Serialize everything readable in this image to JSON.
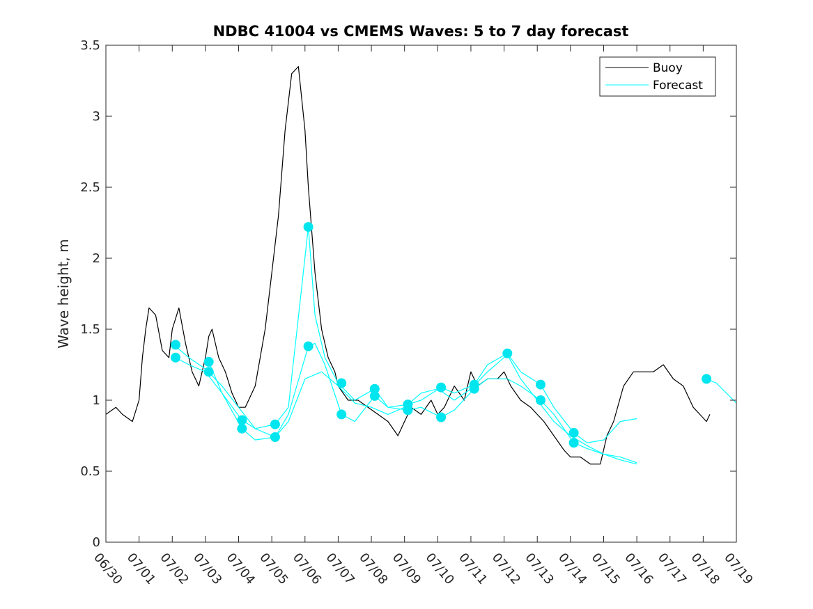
{
  "chart_data": {
    "type": "line",
    "title": "NDBC 41004 vs CMEMS Waves: 5 to 7 day forecast",
    "ylabel": "Wave height, m",
    "xlabel": "",
    "xlim": [
      0,
      19
    ],
    "ylim": [
      0,
      3.5
    ],
    "x_ticks": [
      0,
      1,
      2,
      3,
      4,
      5,
      6,
      7,
      8,
      9,
      10,
      11,
      12,
      13,
      14,
      15,
      16,
      17,
      18,
      19
    ],
    "x_tick_labels": [
      "06/30",
      "07/01",
      "07/02",
      "07/03",
      "07/04",
      "07/05",
      "07/06",
      "07/07",
      "07/08",
      "07/09",
      "07/10",
      "07/11",
      "07/12",
      "07/13",
      "07/14",
      "07/15",
      "07/16",
      "07/17",
      "07/18",
      "07/19"
    ],
    "y_ticks": [
      0,
      0.5,
      1,
      1.5,
      2,
      2.5,
      3,
      3.5
    ],
    "y_tick_labels": [
      "0",
      "0.5",
      "1",
      "1.5",
      "2",
      "2.5",
      "3",
      "3.5"
    ],
    "x_unit": "days after 06/30",
    "legend": {
      "position": "top-right",
      "entries": [
        {
          "name": "Buoy",
          "color": "#000000"
        },
        {
          "name": "Forecast",
          "color": "#00ffff"
        }
      ]
    },
    "colors": {
      "buoy": "#000000",
      "forecast": "#00ffff",
      "marker": "#00e5ee"
    },
    "series": [
      {
        "name": "Buoy",
        "color": "#000000",
        "x": [
          0,
          0.3,
          0.5,
          0.8,
          1.0,
          1.1,
          1.2,
          1.3,
          1.5,
          1.7,
          1.9,
          2.0,
          2.2,
          2.4,
          2.6,
          2.8,
          3.0,
          3.1,
          3.2,
          3.4,
          3.6,
          3.8,
          4.0,
          4.2,
          4.5,
          4.8,
          5.0,
          5.2,
          5.4,
          5.6,
          5.8,
          6.0,
          6.1,
          6.3,
          6.5,
          6.7,
          6.9,
          7.0,
          7.3,
          7.6,
          7.9,
          8.2,
          8.5,
          8.8,
          9.0,
          9.2,
          9.5,
          9.8,
          10.0,
          10.2,
          10.5,
          10.8,
          11.0,
          11.2,
          11.5,
          11.8,
          12.0,
          12.2,
          12.5,
          12.8,
          13.0,
          13.2,
          13.5,
          13.8,
          14.0,
          14.3,
          14.6,
          14.9,
          15.1,
          15.3,
          15.6,
          15.9,
          16.2,
          16.5,
          16.8,
          17.1,
          17.4,
          17.7,
          17.9,
          18.1,
          18.2
        ],
        "y": [
          0.9,
          0.95,
          0.9,
          0.85,
          1.0,
          1.3,
          1.5,
          1.65,
          1.6,
          1.35,
          1.3,
          1.5,
          1.65,
          1.4,
          1.2,
          1.1,
          1.3,
          1.45,
          1.5,
          1.3,
          1.2,
          1.05,
          0.95,
          0.95,
          1.1,
          1.5,
          1.9,
          2.3,
          2.9,
          3.3,
          3.35,
          2.9,
          2.5,
          1.9,
          1.5,
          1.3,
          1.2,
          1.1,
          1.0,
          1.0,
          0.95,
          0.9,
          0.85,
          0.75,
          0.85,
          0.95,
          0.9,
          1.0,
          0.9,
          0.95,
          1.1,
          1.0,
          1.2,
          1.1,
          1.15,
          1.15,
          1.2,
          1.1,
          1.0,
          0.95,
          0.9,
          0.85,
          0.75,
          0.65,
          0.6,
          0.6,
          0.55,
          0.55,
          0.75,
          0.85,
          1.1,
          1.2,
          1.2,
          1.2,
          1.25,
          1.15,
          1.1,
          0.95,
          0.9,
          0.85,
          0.9
        ]
      },
      {
        "name": "Forecast",
        "color": "#00ffff",
        "x": [
          2.1,
          2.5,
          3.0,
          3.5,
          4.0,
          4.5,
          5.1,
          5.5,
          6.0,
          6.5,
          7.0,
          7.5,
          8.0,
          8.5,
          9.0,
          9.5,
          10.0,
          10.5,
          11.0,
          11.5,
          12.1,
          12.5,
          13.0,
          13.5,
          14.0,
          14.5,
          15.0,
          15.5,
          16.0
        ],
        "y": [
          1.38,
          1.3,
          1.22,
          1.1,
          0.95,
          0.8,
          0.74,
          0.85,
          1.15,
          1.2,
          1.1,
          0.98,
          0.95,
          0.9,
          0.95,
          1.05,
          1.08,
          1.0,
          1.08,
          1.2,
          1.32,
          1.15,
          1.0,
          0.85,
          0.75,
          0.68,
          0.62,
          0.6,
          0.56
        ]
      },
      {
        "name": "Forecast",
        "color": "#00ffff",
        "x": [
          2.1,
          2.5,
          3.0,
          3.5,
          4.1,
          4.5,
          5.1,
          5.5,
          6.1,
          6.3,
          6.6,
          7.0,
          7.5,
          8.1,
          8.5,
          9.1,
          9.5,
          10.1,
          10.5,
          11.1,
          11.5,
          12.1,
          12.5,
          13.1,
          13.5,
          14.1,
          14.5,
          15.0,
          15.5,
          16.0
        ],
        "y": [
          1.3,
          1.25,
          1.2,
          1.05,
          0.86,
          0.8,
          0.83,
          0.95,
          2.22,
          1.6,
          1.3,
          1.12,
          1.0,
          1.08,
          0.95,
          0.97,
          1.0,
          1.09,
          1.05,
          1.11,
          1.25,
          1.33,
          1.2,
          1.11,
          0.95,
          0.77,
          0.7,
          0.72,
          0.85,
          0.87
        ]
      },
      {
        "name": "Forecast",
        "color": "#00ffff",
        "x": [
          3.1,
          3.5,
          4.1,
          4.5,
          5.1,
          5.5,
          6.1,
          6.3,
          6.6,
          7.1,
          7.5,
          8.1,
          8.5,
          9.1,
          9.5,
          10.1,
          10.5,
          11.1,
          11.5,
          12.1,
          12.5,
          13.1,
          13.5,
          14.1,
          14.5,
          15.0,
          15.5,
          16.0
        ],
        "y": [
          1.27,
          1.05,
          0.8,
          0.72,
          0.74,
          0.9,
          1.38,
          1.4,
          1.25,
          0.9,
          0.85,
          1.03,
          0.95,
          0.93,
          0.95,
          0.88,
          0.93,
          1.08,
          1.15,
          1.15,
          1.1,
          1.0,
          0.9,
          0.7,
          0.66,
          0.62,
          0.58,
          0.55
        ]
      },
      {
        "name": "Forecast",
        "color": "#00ffff",
        "x": [
          18.1,
          18.4,
          18.7,
          19.0
        ],
        "y": [
          1.15,
          1.12,
          1.05,
          0.98
        ]
      }
    ],
    "markers": {
      "color": "#00e5ee",
      "x": [
        2.1,
        2.1,
        3.1,
        3.1,
        4.1,
        4.1,
        5.1,
        5.1,
        6.1,
        6.1,
        7.1,
        7.1,
        8.1,
        8.1,
        9.1,
        9.1,
        10.1,
        10.1,
        11.1,
        11.1,
        12.1,
        13.1,
        13.1,
        14.1,
        14.1,
        18.1
      ],
      "y": [
        1.39,
        1.3,
        1.27,
        1.2,
        0.86,
        0.8,
        0.83,
        0.74,
        2.22,
        1.38,
        1.12,
        0.9,
        1.08,
        1.03,
        0.97,
        0.93,
        1.09,
        0.88,
        1.11,
        1.08,
        1.33,
        1.11,
        1.0,
        0.77,
        0.7,
        1.15
      ]
    }
  }
}
